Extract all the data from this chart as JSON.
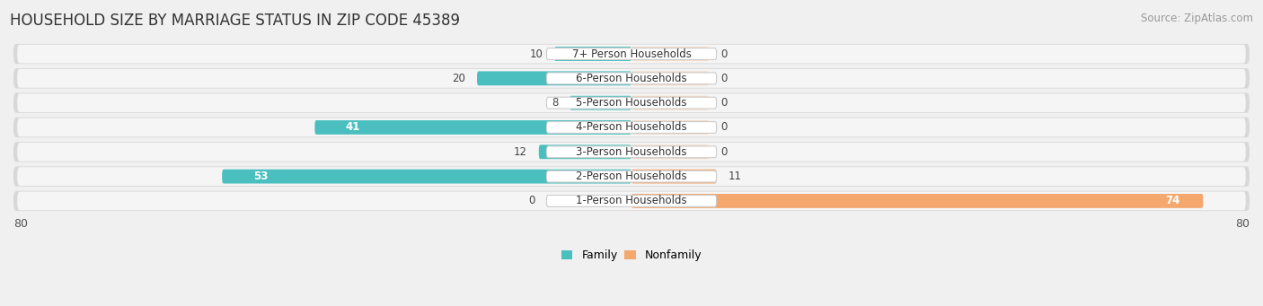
{
  "title": "HOUSEHOLD SIZE BY MARRIAGE STATUS IN ZIP CODE 45389",
  "source": "Source: ZipAtlas.com",
  "categories": [
    "7+ Person Households",
    "6-Person Households",
    "5-Person Households",
    "4-Person Households",
    "3-Person Households",
    "2-Person Households",
    "1-Person Households"
  ],
  "family_values": [
    10,
    20,
    8,
    41,
    12,
    53,
    0
  ],
  "nonfamily_values": [
    0,
    0,
    0,
    0,
    0,
    11,
    74
  ],
  "family_color": "#4BBFBF",
  "nonfamily_color": "#F5A86E",
  "axis_limit": 80,
  "bg_color": "#f0f0f0",
  "title_fontsize": 12,
  "source_fontsize": 8.5,
  "bar_label_fontsize": 8.5,
  "category_fontsize": 8.5,
  "axis_fontsize": 9,
  "legend_fontsize": 9
}
